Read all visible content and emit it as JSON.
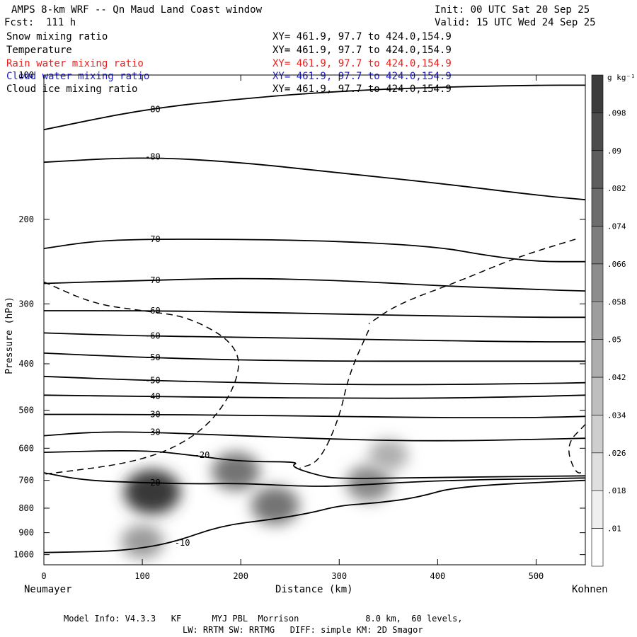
{
  "header": {
    "title": "AMPS 8-km WRF -- Qn Maud Land Coast window",
    "init": "Init: 00 UTC Sat 20 Sep 25",
    "forecast": "Fcst:  111 h",
    "valid": "Valid: 15 UTC Wed 24 Sep 25"
  },
  "legend": [
    {
      "label": "Snow mixing ratio",
      "xy": "XY= 461.9, 97.7 to 424.0,154.9",
      "color": "#000000"
    },
    {
      "label": "Temperature",
      "xy": "XY= 461.9, 97.7 to 424.0,154.9",
      "color": "#000000"
    },
    {
      "label": "Rain water mixing ratio",
      "xy": "XY= 461.9, 97.7 to 424.0,154.9",
      "color": "#e8201c"
    },
    {
      "label": "Cloud water mixing ratio",
      "xy": "XY= 461.9, 97.7 to 424.0,154.9",
      "color": "#2020c0"
    },
    {
      "label": "Cloud ice mixing ratio",
      "xy": "XY= 461.9, 97.7 to 424.0,154.9",
      "color": "#000000"
    }
  ],
  "axes": {
    "ylabel": "Pressure (hPa)",
    "xlabel": "Distance (km)",
    "left_endpoint": "Neumayer",
    "right_endpoint": "Kohnen"
  },
  "colorbar": {
    "unit": "g kg⁻¹",
    "ticks": [
      ".098",
      ".09",
      ".082",
      ".074",
      ".066",
      ".058",
      ".05",
      ".042",
      ".034",
      ".026",
      ".018",
      ".01"
    ]
  },
  "footer": {
    "line1": "Model Info: V4.3.3   KF      MYJ PBL  Morrison             8.0 km,  60 levels,",
    "line2": "LW: RRTM SW: RRTMG   DIFF: simple KM: 2D Smagor"
  },
  "chart_data": {
    "type": "contour",
    "x_range": [
      0,
      550
    ],
    "y_range": [
      1050,
      100
    ],
    "y_scale": "log",
    "x_ticks": [
      0,
      100,
      200,
      300,
      400,
      500
    ],
    "y_ticks": [
      100,
      200,
      300,
      400,
      500,
      600,
      700,
      800,
      900,
      1000
    ],
    "temperature_contours": [
      {
        "value": -80,
        "points": [
          [
            0,
            130
          ],
          [
            100,
            118
          ],
          [
            200,
            112
          ],
          [
            300,
            108
          ],
          [
            400,
            106
          ],
          [
            500,
            105
          ],
          [
            550,
            105
          ]
        ]
      },
      {
        "value": -80,
        "points": [
          [
            0,
            152
          ],
          [
            100,
            148
          ],
          [
            200,
            152
          ],
          [
            300,
            160
          ],
          [
            400,
            168
          ],
          [
            500,
            178
          ],
          [
            550,
            182
          ]
        ]
      },
      {
        "value": -70,
        "points": [
          [
            0,
            230
          ],
          [
            50,
            222
          ],
          [
            100,
            220
          ],
          [
            200,
            220
          ],
          [
            300,
            222
          ],
          [
            400,
            228
          ],
          [
            450,
            238
          ],
          [
            500,
            245
          ],
          [
            550,
            245
          ]
        ]
      },
      {
        "value": -70,
        "points": [
          [
            0,
            272
          ],
          [
            100,
            268
          ],
          [
            200,
            265
          ],
          [
            300,
            268
          ],
          [
            400,
            275
          ],
          [
            500,
            280
          ],
          [
            550,
            282
          ]
        ]
      },
      {
        "value": -60,
        "points": [
          [
            0,
            310
          ],
          [
            100,
            310
          ],
          [
            200,
            312
          ],
          [
            300,
            315
          ],
          [
            400,
            318
          ],
          [
            500,
            320
          ],
          [
            550,
            320
          ]
        ]
      },
      {
        "value": -60,
        "points": [
          [
            0,
            345
          ],
          [
            100,
            350
          ],
          [
            200,
            352
          ],
          [
            300,
            355
          ],
          [
            400,
            358
          ],
          [
            500,
            360
          ],
          [
            550,
            360
          ]
        ]
      },
      {
        "value": -50,
        "points": [
          [
            0,
            380
          ],
          [
            100,
            388
          ],
          [
            200,
            393
          ],
          [
            300,
            395
          ],
          [
            400,
            395
          ],
          [
            500,
            395
          ],
          [
            550,
            395
          ]
        ]
      },
      {
        "value": -50,
        "points": [
          [
            0,
            425
          ],
          [
            100,
            433
          ],
          [
            200,
            438
          ],
          [
            300,
            442
          ],
          [
            400,
            442
          ],
          [
            500,
            440
          ],
          [
            550,
            438
          ]
        ]
      },
      {
        "value": -40,
        "points": [
          [
            0,
            465
          ],
          [
            100,
            468
          ],
          [
            200,
            470
          ],
          [
            300,
            472
          ],
          [
            400,
            472
          ],
          [
            500,
            468
          ],
          [
            550,
            465
          ]
        ]
      },
      {
        "value": -30,
        "points": [
          [
            0,
            510
          ],
          [
            100,
            510
          ],
          [
            200,
            512
          ],
          [
            300,
            515
          ],
          [
            400,
            518
          ],
          [
            500,
            518
          ],
          [
            550,
            515
          ]
        ]
      },
      {
        "value": -30,
        "points": [
          [
            0,
            565
          ],
          [
            50,
            555
          ],
          [
            100,
            555
          ],
          [
            200,
            565
          ],
          [
            300,
            575
          ],
          [
            400,
            580
          ],
          [
            500,
            575
          ],
          [
            550,
            572
          ]
        ]
      },
      {
        "value": -20,
        "points": [
          [
            0,
            612
          ],
          [
            100,
            605
          ],
          [
            150,
            620
          ],
          [
            200,
            640
          ],
          [
            260,
            640
          ],
          [
            250,
            655
          ],
          [
            280,
            685
          ],
          [
            300,
            695
          ],
          [
            400,
            690
          ],
          [
            550,
            685
          ]
        ]
      },
      {
        "value": -20,
        "points": [
          [
            0,
            675
          ],
          [
            40,
            700
          ],
          [
            100,
            708
          ],
          [
            150,
            712
          ],
          [
            200,
            710
          ],
          [
            260,
            720
          ],
          [
            300,
            720
          ],
          [
            400,
            700
          ],
          [
            550,
            692
          ]
        ]
      },
      {
        "value": -10,
        "points": [
          [
            0,
            990
          ],
          [
            60,
            985
          ],
          [
            90,
            975
          ],
          [
            130,
            945
          ],
          [
            180,
            870
          ],
          [
            230,
            845
          ],
          [
            270,
            820
          ],
          [
            300,
            790
          ],
          [
            340,
            780
          ],
          [
            380,
            760
          ],
          [
            420,
            720
          ],
          [
            550,
            700
          ]
        ]
      }
    ],
    "cloud_ice_contours_dashed": [
      {
        "points": [
          [
            0,
            270
          ],
          [
            50,
            300
          ],
          [
            100,
            310
          ],
          [
            150,
            320
          ],
          [
            200,
            370
          ],
          [
            195,
            450
          ],
          [
            160,
            560
          ],
          [
            100,
            640
          ],
          [
            0,
            680
          ]
        ]
      },
      {
        "points": [
          [
            330,
            340
          ],
          [
            310,
            420
          ],
          [
            300,
            520
          ],
          [
            280,
            640
          ],
          [
            260,
            660
          ]
        ]
      },
      {
        "points": [
          [
            540,
            220
          ],
          [
            480,
            240
          ],
          [
            420,
            270
          ],
          [
            360,
            300
          ],
          [
            330,
            330
          ]
        ]
      },
      {
        "points": [
          [
            550,
            535
          ],
          [
            530,
            590
          ],
          [
            540,
            680
          ],
          [
            550,
            670
          ]
        ]
      }
    ],
    "snow_shading": [
      {
        "x": 110,
        "p": 740,
        "max": 0.09
      },
      {
        "x": 195,
        "p": 670,
        "max": 0.06
      },
      {
        "x": 235,
        "p": 790,
        "max": 0.06
      },
      {
        "x": 330,
        "p": 710,
        "max": 0.05
      },
      {
        "x": 350,
        "p": 620,
        "max": 0.03
      },
      {
        "x": 100,
        "p": 940,
        "max": 0.04
      }
    ]
  }
}
